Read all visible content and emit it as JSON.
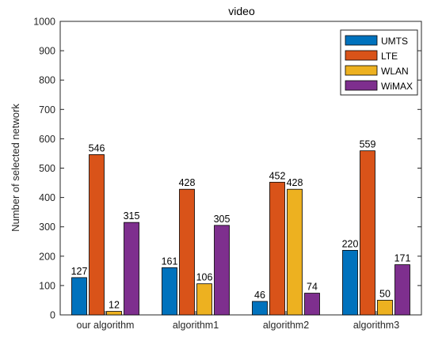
{
  "chart_data": {
    "type": "bar",
    "title": "video",
    "xlabel": "",
    "ylabel": "Number of selected network",
    "ylim": [
      0,
      1000
    ],
    "yticks": [
      0,
      100,
      200,
      300,
      400,
      500,
      600,
      700,
      800,
      900,
      1000
    ],
    "categories": [
      "our algorithm",
      "algorithm1",
      "algorithm2",
      "algorithm3"
    ],
    "series": [
      {
        "name": "UMTS",
        "color": "#0072BD",
        "values": [
          127,
          161,
          46,
          220
        ]
      },
      {
        "name": "LTE",
        "color": "#D95319",
        "values": [
          546,
          428,
          452,
          559
        ]
      },
      {
        "name": "WLAN",
        "color": "#EDB120",
        "values": [
          12,
          106,
          428,
          50
        ]
      },
      {
        "name": "WiMAX",
        "color": "#7E2F8E",
        "values": [
          315,
          305,
          74,
          171
        ]
      }
    ],
    "legend_position": "top-right",
    "grid": false
  }
}
